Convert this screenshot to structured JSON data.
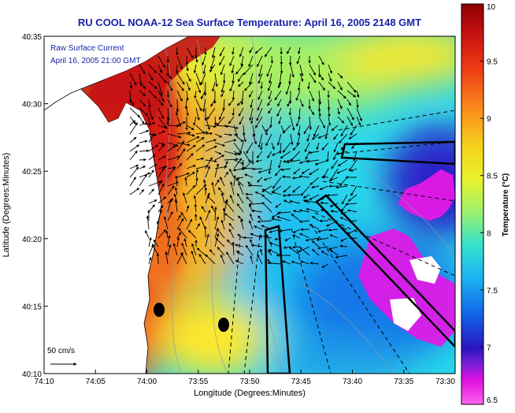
{
  "title": "RU COOL  NOAA-12  Sea Surface Temperature:  April 16, 2005 2148 GMT",
  "legend": {
    "line1": "Raw Surface Current",
    "line2": "April 16, 2005 21:00 GMT",
    "scale_label": "50 cm/s"
  },
  "colorbar": {
    "label": "Temperature (°C)",
    "ticks": [
      "10",
      "9.5",
      "9",
      "8.5",
      "8",
      "7.5",
      "7",
      "6.5"
    ],
    "tick_values": [
      10,
      9.5,
      9,
      8.5,
      8,
      7.5,
      7,
      6.5
    ]
  },
  "axes": {
    "xlabel": "Longitude (Degrees:Minutes)",
    "ylabel": "Latitude (Degrees:Minutes)",
    "xticks": [
      "74:10",
      "74:05",
      "74:00",
      "73:55",
      "73:50",
      "73:45",
      "73:40",
      "73:35",
      "73:30"
    ],
    "yticks": [
      "40:35",
      "40:30",
      "40:25",
      "40:20",
      "40:15",
      "40:10"
    ]
  },
  "colors": {
    "title": "#1a22a8",
    "legend_text": "#1a22a8",
    "land": "#ffffff",
    "coast": "#000000",
    "vector": "#000000"
  }
}
